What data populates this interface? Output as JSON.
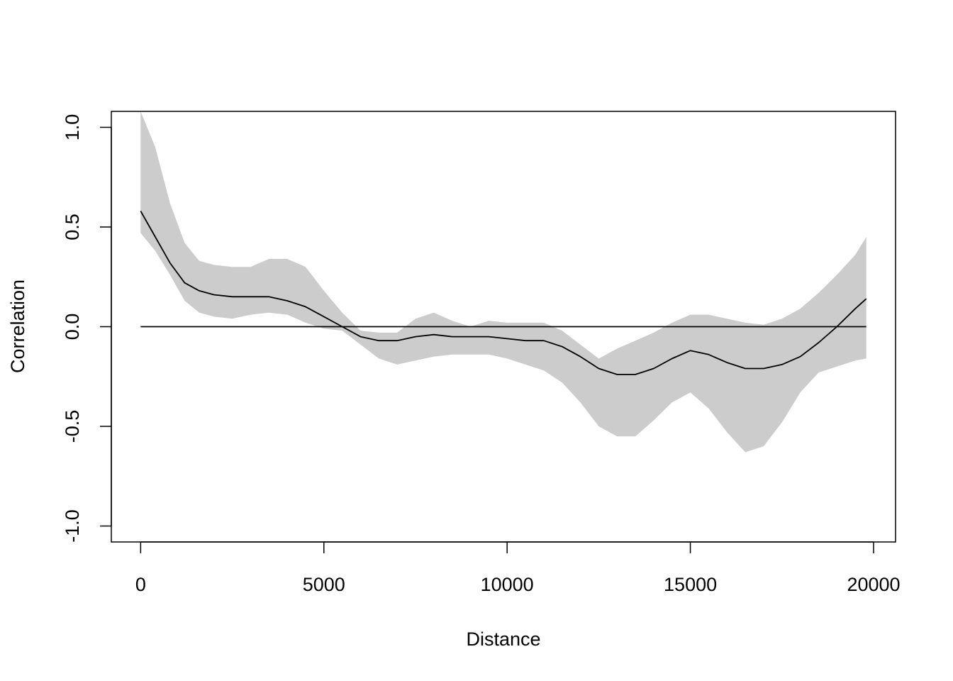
{
  "chart_data": {
    "type": "line",
    "title": "",
    "xlabel": "Distance",
    "ylabel": "Correlation",
    "xlim": [
      -800,
      20600
    ],
    "ylim": [
      -1.08,
      1.08
    ],
    "xticks": [
      {
        "value": 0,
        "label": "0"
      },
      {
        "value": 5000,
        "label": "5000"
      },
      {
        "value": 10000,
        "label": "10000"
      },
      {
        "value": 15000,
        "label": "15000"
      },
      {
        "value": 20000,
        "label": "20000"
      }
    ],
    "yticks": [
      {
        "value": -1.0,
        "label": "-1.0"
      },
      {
        "value": -0.5,
        "label": "-0.5"
      },
      {
        "value": 0.0,
        "label": "0.0"
      },
      {
        "value": 0.5,
        "label": "0.5"
      },
      {
        "value": 1.0,
        "label": "1.0"
      }
    ],
    "reference_line": {
      "y": 0,
      "x_from": 0,
      "x_to": 19800,
      "color": "#000000"
    },
    "band_color": "#cccccc",
    "line_color": "#000000",
    "grid": false,
    "series": [
      {
        "x": [
          0,
          400,
          800,
          1200,
          1600,
          2000,
          2500,
          3000,
          3500,
          4000,
          4500,
          5000,
          5500,
          6000,
          6500,
          7000,
          7500,
          8000,
          8500,
          9000,
          9500,
          10000,
          10500,
          11000,
          11500,
          12000,
          12500,
          13000,
          13500,
          14000,
          14500,
          15000,
          15500,
          16000,
          16500,
          17000,
          17500,
          18000,
          18500,
          19000,
          19500,
          19800
        ],
        "values": [
          0.58,
          0.45,
          0.32,
          0.22,
          0.18,
          0.16,
          0.15,
          0.15,
          0.15,
          0.13,
          0.1,
          0.05,
          0.0,
          -0.05,
          -0.07,
          -0.07,
          -0.05,
          -0.04,
          -0.05,
          -0.05,
          -0.05,
          -0.06,
          -0.07,
          -0.07,
          -0.1,
          -0.15,
          -0.21,
          -0.24,
          -0.24,
          -0.21,
          -0.16,
          -0.12,
          -0.14,
          -0.18,
          -0.21,
          -0.21,
          -0.19,
          -0.15,
          -0.08,
          0.0,
          0.09,
          0.14
        ]
      },
      {
        "x": [
          0,
          400,
          800,
          1200,
          1600,
          2000,
          2500,
          3000,
          3500,
          4000,
          4500,
          5000,
          5500,
          6000,
          6500,
          7000,
          7500,
          8000,
          8500,
          9000,
          9500,
          10000,
          10500,
          11000,
          11500,
          12000,
          12500,
          13000,
          13500,
          14000,
          14500,
          15000,
          15500,
          16000,
          16500,
          17000,
          17500,
          18000,
          18500,
          19000,
          19500,
          19800
        ],
        "upper": [
          1.08,
          0.9,
          0.62,
          0.42,
          0.33,
          0.31,
          0.3,
          0.3,
          0.34,
          0.34,
          0.3,
          0.18,
          0.07,
          -0.02,
          -0.03,
          -0.03,
          0.04,
          0.07,
          0.03,
          0.0,
          0.03,
          0.02,
          0.02,
          0.02,
          -0.02,
          -0.09,
          -0.16,
          -0.11,
          -0.07,
          -0.03,
          0.02,
          0.06,
          0.06,
          0.04,
          0.02,
          0.01,
          0.04,
          0.09,
          0.17,
          0.26,
          0.36,
          0.45
        ],
        "lower": [
          0.47,
          0.38,
          0.26,
          0.13,
          0.07,
          0.05,
          0.04,
          0.06,
          0.07,
          0.06,
          0.02,
          -0.01,
          -0.02,
          -0.09,
          -0.16,
          -0.19,
          -0.17,
          -0.15,
          -0.14,
          -0.14,
          -0.14,
          -0.16,
          -0.19,
          -0.22,
          -0.28,
          -0.38,
          -0.5,
          -0.55,
          -0.55,
          -0.47,
          -0.38,
          -0.33,
          -0.41,
          -0.53,
          -0.63,
          -0.6,
          -0.48,
          -0.33,
          -0.23,
          -0.2,
          -0.17,
          -0.16
        ]
      }
    ]
  }
}
